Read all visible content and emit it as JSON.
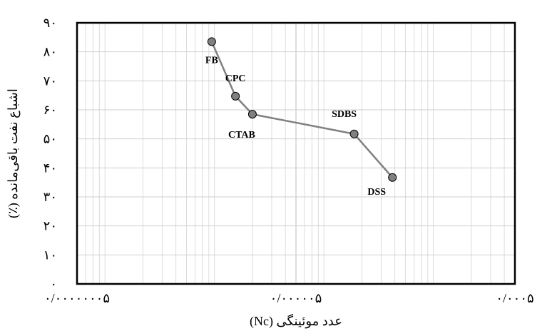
{
  "chart_data": {
    "type": "scatter",
    "connected": true,
    "title": "",
    "xlabel": "عدد موئینگی (Nc)",
    "ylabel": "اشباع نفت باقی‌مانده (٪)",
    "xscale": "log",
    "xlim": [
      5e-08,
      0.0005
    ],
    "ylim": [
      0,
      90
    ],
    "xticks": [
      {
        "value": 5e-08,
        "label": "۰/۰۰۰۰۰۰۰۵"
      },
      {
        "value": 5e-06,
        "label": "۰/۰۰۰۰۰۵"
      },
      {
        "value": 0.0005,
        "label": "۰/۰۰۰۵"
      }
    ],
    "yticks": [
      {
        "value": 0,
        "label": "۰"
      },
      {
        "value": 10,
        "label": "۱۰"
      },
      {
        "value": 20,
        "label": "۲۰"
      },
      {
        "value": 30,
        "label": "۳۰"
      },
      {
        "value": 40,
        "label": "۴۰"
      },
      {
        "value": 50,
        "label": "۵۰"
      },
      {
        "value": 60,
        "label": "۶۰"
      },
      {
        "value": 70,
        "label": "۷۰"
      },
      {
        "value": 80,
        "label": "۸۰"
      },
      {
        "value": 90,
        "label": "۹۰"
      }
    ],
    "grid": true,
    "series": [
      {
        "color": "#808080",
        "points": [
          {
            "label": "FB",
            "x": 8.5e-07,
            "y": 83.5
          },
          {
            "label": "CPC",
            "x": 1.4e-06,
            "y": 64.7
          },
          {
            "label": "CTAB",
            "x": 2e-06,
            "y": 58.5
          },
          {
            "label": "SDBS",
            "x": 1.7e-05,
            "y": 51.7
          },
          {
            "label": "DSS",
            "x": 3.8e-05,
            "y": 36.7
          }
        ]
      }
    ]
  }
}
